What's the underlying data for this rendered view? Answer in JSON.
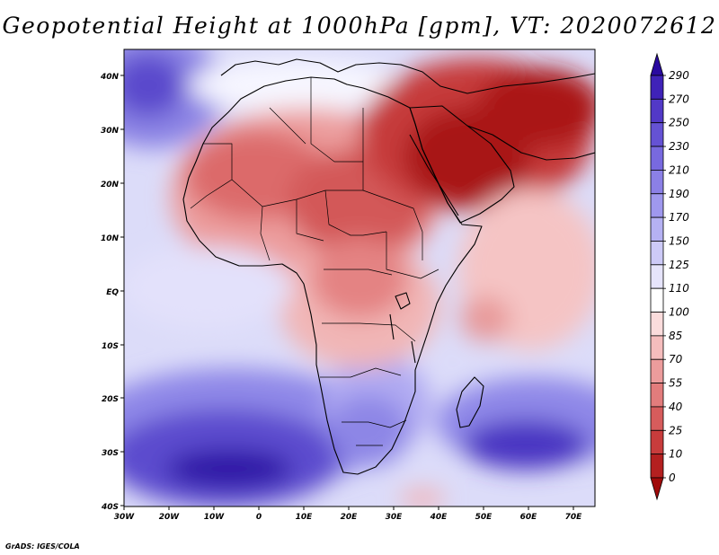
{
  "title": "Geopotential Height at 1000hPa [gpm], VT: 2020072612",
  "credit": "GrADS: IGES/COLA",
  "map": {
    "lon_ticks": [
      "30W",
      "20W",
      "10W",
      "0",
      "10E",
      "20E",
      "30E",
      "40E",
      "50E",
      "60E",
      "70E"
    ],
    "lat_ticks": [
      "40N",
      "30N",
      "20N",
      "10N",
      "EQ",
      "10S",
      "20S",
      "30S",
      "40S"
    ]
  },
  "colorbar": {
    "labels": [
      "290",
      "270",
      "250",
      "230",
      "210",
      "190",
      "170",
      "150",
      "125",
      "110",
      "100",
      "85",
      "70",
      "55",
      "40",
      "25",
      "10",
      "0"
    ],
    "colors": [
      "#2a0aa0",
      "#3f22b8",
      "#5239c7",
      "#6552d4",
      "#7869df",
      "#8b80e6",
      "#9f98ee",
      "#b5b1f3",
      "#cdcaf7",
      "#e6e4fb",
      "#ffffff",
      "#fbdcdc",
      "#f5bdbd",
      "#ec9c9c",
      "#e27c7c",
      "#d65c5c",
      "#c83c3c",
      "#b42020",
      "#a00a0a"
    ]
  }
}
